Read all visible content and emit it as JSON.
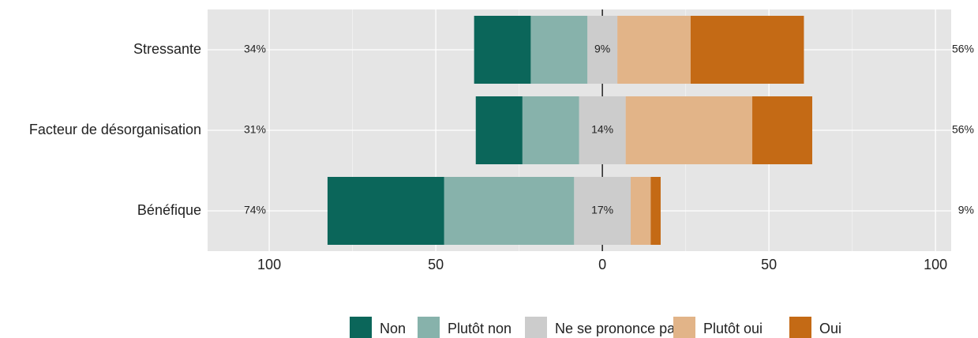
{
  "chart_data": {
    "type": "diverging_bar",
    "categories": [
      "Stressante",
      "Facteur de désorganisation",
      "Bénéfique"
    ],
    "series": [
      {
        "name": "Non",
        "color": "#0b665a",
        "values": [
          17,
          14,
          35
        ]
      },
      {
        "name": "Plutôt non",
        "color": "#87b2ab",
        "values": [
          17,
          17,
          39
        ]
      },
      {
        "name": "Ne se prononce pas",
        "color": "#cccccc",
        "values": [
          9,
          14,
          17
        ],
        "value_labels": [
          "9%",
          "14%",
          "17%"
        ]
      },
      {
        "name": "Plutôt oui",
        "color": "#e2b488",
        "values": [
          22,
          38,
          6
        ]
      },
      {
        "name": "Oui",
        "color": "#c46a15",
        "values": [
          34,
          18,
          3
        ]
      }
    ],
    "left_labels": [
      "34%",
      "31%",
      "74%"
    ],
    "right_labels": [
      "56%",
      "56%",
      "9%"
    ],
    "xlim": [
      -118.5,
      104.7
    ],
    "xticks": [
      {
        "value": -100,
        "label": "100"
      },
      {
        "value": -50,
        "label": "50"
      },
      0,
      50,
      100
    ],
    "xminorticks": [
      -75,
      -25,
      25,
      75
    ],
    "grid": true
  }
}
